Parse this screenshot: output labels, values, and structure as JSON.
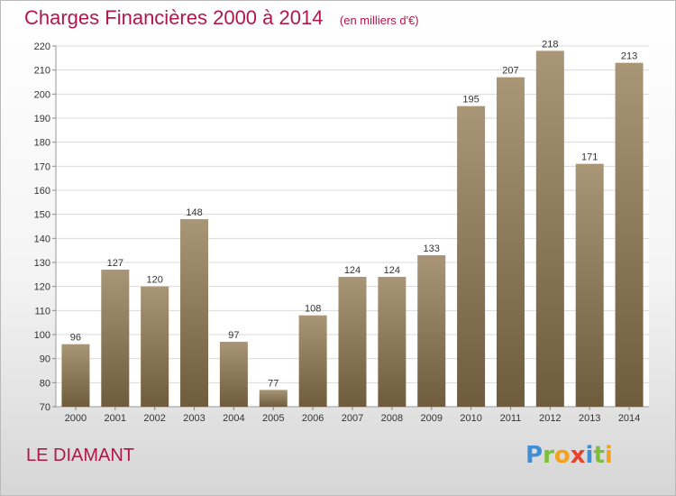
{
  "chart_data": {
    "type": "bar",
    "title": "Charges Financières 2000 à 2014",
    "subtitle": "(en milliers d'€)",
    "categories": [
      "2000",
      "2001",
      "2002",
      "2003",
      "2004",
      "2005",
      "2006",
      "2007",
      "2008",
      "2009",
      "2010",
      "2011",
      "2012",
      "2013",
      "2014"
    ],
    "values": [
      96,
      127,
      120,
      148,
      97,
      77,
      108,
      124,
      124,
      133,
      195,
      207,
      218,
      171,
      213
    ],
    "ylim": [
      70,
      220
    ],
    "yticks": [
      70,
      80,
      90,
      100,
      110,
      120,
      130,
      140,
      150,
      160,
      170,
      180,
      190,
      200,
      210,
      220
    ],
    "grid": true,
    "data_labels": true,
    "colors": {
      "bar_top": "#a89676",
      "bar_bottom": "#6e5c3c",
      "grid": "#d9d9d9"
    }
  },
  "footer": {
    "commune": "LE DIAMANT",
    "brand_letters": [
      {
        "ch": "P",
        "color": "#3f8fd6"
      },
      {
        "ch": "r",
        "color": "#7cbf3a"
      },
      {
        "ch": "o",
        "color": "#f2a21b"
      },
      {
        "ch": "x",
        "color": "#e8432b"
      },
      {
        "ch": "i",
        "color": "#3f8fd6"
      },
      {
        "ch": "t",
        "color": "#7cbf3a"
      },
      {
        "ch": "i",
        "color": "#f2a21b"
      }
    ]
  }
}
